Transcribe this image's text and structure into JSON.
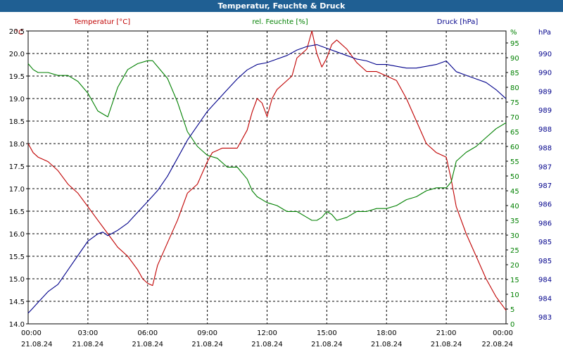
{
  "title": "Temperatur, Feuchte & Druck",
  "chart_data": {
    "type": "line",
    "title": "Temperatur, Feuchte & Druck",
    "x_labels": [
      "00:00",
      "03:00",
      "06:00",
      "09:00",
      "12:00",
      "15:00",
      "18:00",
      "21:00",
      "00:00"
    ],
    "date_labels": [
      "21.08.24",
      "21.08.24",
      "21.08.24",
      "21.08.24",
      "21.08.24",
      "21.08.24",
      "21.08.24",
      "21.08.24",
      "22.08.24"
    ],
    "grid": true,
    "series": [
      {
        "name": "Temperatur [°C]",
        "axis": "left",
        "color": "#c00000",
        "x": [
          "00:00",
          "00:15",
          "00:30",
          "00:45",
          "01:00",
          "01:30",
          "02:00",
          "02:30",
          "03:00",
          "03:30",
          "04:00",
          "04:30",
          "05:00",
          "05:30",
          "05:45",
          "06:00",
          "06:15",
          "06:30",
          "07:00",
          "07:30",
          "08:00",
          "08:30",
          "09:00",
          "09:15",
          "09:30",
          "09:45",
          "10:00",
          "10:30",
          "11:00",
          "11:15",
          "11:30",
          "11:45",
          "12:00",
          "12:15",
          "12:30",
          "13:00",
          "13:15",
          "13:30",
          "13:45",
          "14:00",
          "14:15",
          "14:30",
          "14:45",
          "15:00",
          "15:15",
          "15:30",
          "16:00",
          "16:30",
          "17:00",
          "17:30",
          "18:00",
          "18:30",
          "19:00",
          "19:30",
          "20:00",
          "20:30",
          "21:00",
          "21:15",
          "21:30",
          "22:00",
          "22:30",
          "23:00",
          "23:30",
          "00:00"
        ],
        "y": [
          18.0,
          17.8,
          17.7,
          17.65,
          17.6,
          17.4,
          17.1,
          16.9,
          16.6,
          16.3,
          16.0,
          15.7,
          15.5,
          15.2,
          15.0,
          14.9,
          14.85,
          15.3,
          15.8,
          16.3,
          16.9,
          17.1,
          17.6,
          17.8,
          17.85,
          17.9,
          17.9,
          17.9,
          18.3,
          18.7,
          19.0,
          18.9,
          18.6,
          19.0,
          19.2,
          19.4,
          19.5,
          19.9,
          20.0,
          20.1,
          20.5,
          20.0,
          19.7,
          19.9,
          20.2,
          20.3,
          20.1,
          19.8,
          19.6,
          19.6,
          19.5,
          19.4,
          19.0,
          18.5,
          18.0,
          17.8,
          17.7,
          17.2,
          16.6,
          16.0,
          15.5,
          15.0,
          14.6,
          14.3
        ]
      },
      {
        "name": "rel. Feuchte [%]",
        "axis": "right1",
        "color": "#008000",
        "x": [
          "00:00",
          "00:15",
          "00:30",
          "01:00",
          "01:30",
          "02:00",
          "02:30",
          "03:00",
          "03:30",
          "04:00",
          "04:30",
          "05:00",
          "05:30",
          "06:00",
          "06:15",
          "06:30",
          "07:00",
          "07:30",
          "08:00",
          "08:30",
          "09:00",
          "09:30",
          "10:00",
          "10:30",
          "11:00",
          "11:15",
          "11:30",
          "12:00",
          "12:30",
          "13:00",
          "13:30",
          "14:00",
          "14:15",
          "14:30",
          "14:45",
          "15:00",
          "15:15",
          "15:30",
          "16:00",
          "16:30",
          "17:00",
          "17:30",
          "18:00",
          "18:30",
          "19:00",
          "19:30",
          "20:00",
          "20:30",
          "21:00",
          "21:15",
          "21:30",
          "22:00",
          "22:30",
          "23:00",
          "23:30",
          "00:00"
        ],
        "y": [
          88,
          86,
          85,
          85,
          84,
          84,
          82,
          78,
          72,
          70,
          80,
          86,
          88,
          89,
          89,
          87,
          83,
          75,
          65,
          60,
          57,
          56,
          53,
          53,
          49,
          45,
          43,
          41,
          40,
          38,
          38,
          36,
          35,
          35,
          36,
          38,
          37,
          35,
          36,
          38,
          38,
          39,
          39,
          40,
          42,
          43,
          45,
          46,
          46,
          48,
          55,
          58,
          60,
          63,
          66,
          68
        ]
      },
      {
        "name": "Druck [hPa]",
        "axis": "right2",
        "color": "#00008b",
        "x": [
          "00:00",
          "00:15",
          "00:30",
          "01:00",
          "01:30",
          "02:00",
          "02:30",
          "03:00",
          "03:15",
          "03:30",
          "03:45",
          "04:00",
          "04:30",
          "05:00",
          "05:30",
          "06:00",
          "06:30",
          "07:00",
          "07:30",
          "08:00",
          "08:30",
          "09:00",
          "09:30",
          "10:00",
          "10:30",
          "11:00",
          "11:30",
          "12:00",
          "12:30",
          "13:00",
          "13:30",
          "14:00",
          "14:30",
          "15:00",
          "15:30",
          "16:00",
          "16:30",
          "17:00",
          "17:30",
          "18:00",
          "18:30",
          "19:00",
          "19:30",
          "20:00",
          "20:30",
          "21:00",
          "21:30",
          "22:00",
          "22:30",
          "23:00",
          "23:30",
          "00:00"
        ],
        "y": [
          983.1,
          983.25,
          983.4,
          983.7,
          983.9,
          984.3,
          984.7,
          985.1,
          985.2,
          985.3,
          985.35,
          985.25,
          985.4,
          985.6,
          985.9,
          986.2,
          986.5,
          986.9,
          987.4,
          987.9,
          988.3,
          988.7,
          989.0,
          989.3,
          989.6,
          989.85,
          990.0,
          990.05,
          990.15,
          990.25,
          990.4,
          990.5,
          990.55,
          990.45,
          990.35,
          990.25,
          990.15,
          990.1,
          990.0,
          990.0,
          989.95,
          989.9,
          989.9,
          989.95,
          990.0,
          990.1,
          989.8,
          989.7,
          989.6,
          989.5,
          989.3,
          989.05
        ]
      }
    ],
    "axes": {
      "left": {
        "label": "°C",
        "min": 14.0,
        "max": 20.5,
        "ticks": [
          "14.0",
          "14.5",
          "15.0",
          "15.5",
          "16.0",
          "16.5",
          "17.0",
          "17.5",
          "18.0",
          "18.5",
          "19.0",
          "19.5",
          "20.0",
          "20.5"
        ],
        "color": "#c00000"
      },
      "right1": {
        "label": "%",
        "min": 0,
        "max": 95,
        "ticks": [
          "0",
          "5",
          "10",
          "15",
          "20",
          "25",
          "30",
          "35",
          "40",
          "45",
          "50",
          "55",
          "60",
          "65",
          "70",
          "75",
          "80",
          "85",
          "90",
          "95"
        ],
        "color": "#008000"
      },
      "right2": {
        "label": "hPa",
        "min": 982.8,
        "max": 990.85,
        "ticks": [
          "983",
          "984",
          "984",
          "985",
          "985",
          "986",
          "986",
          "987",
          "987",
          "988",
          "988",
          "989",
          "989",
          "990",
          "990"
        ],
        "color": "#00008b"
      }
    }
  }
}
